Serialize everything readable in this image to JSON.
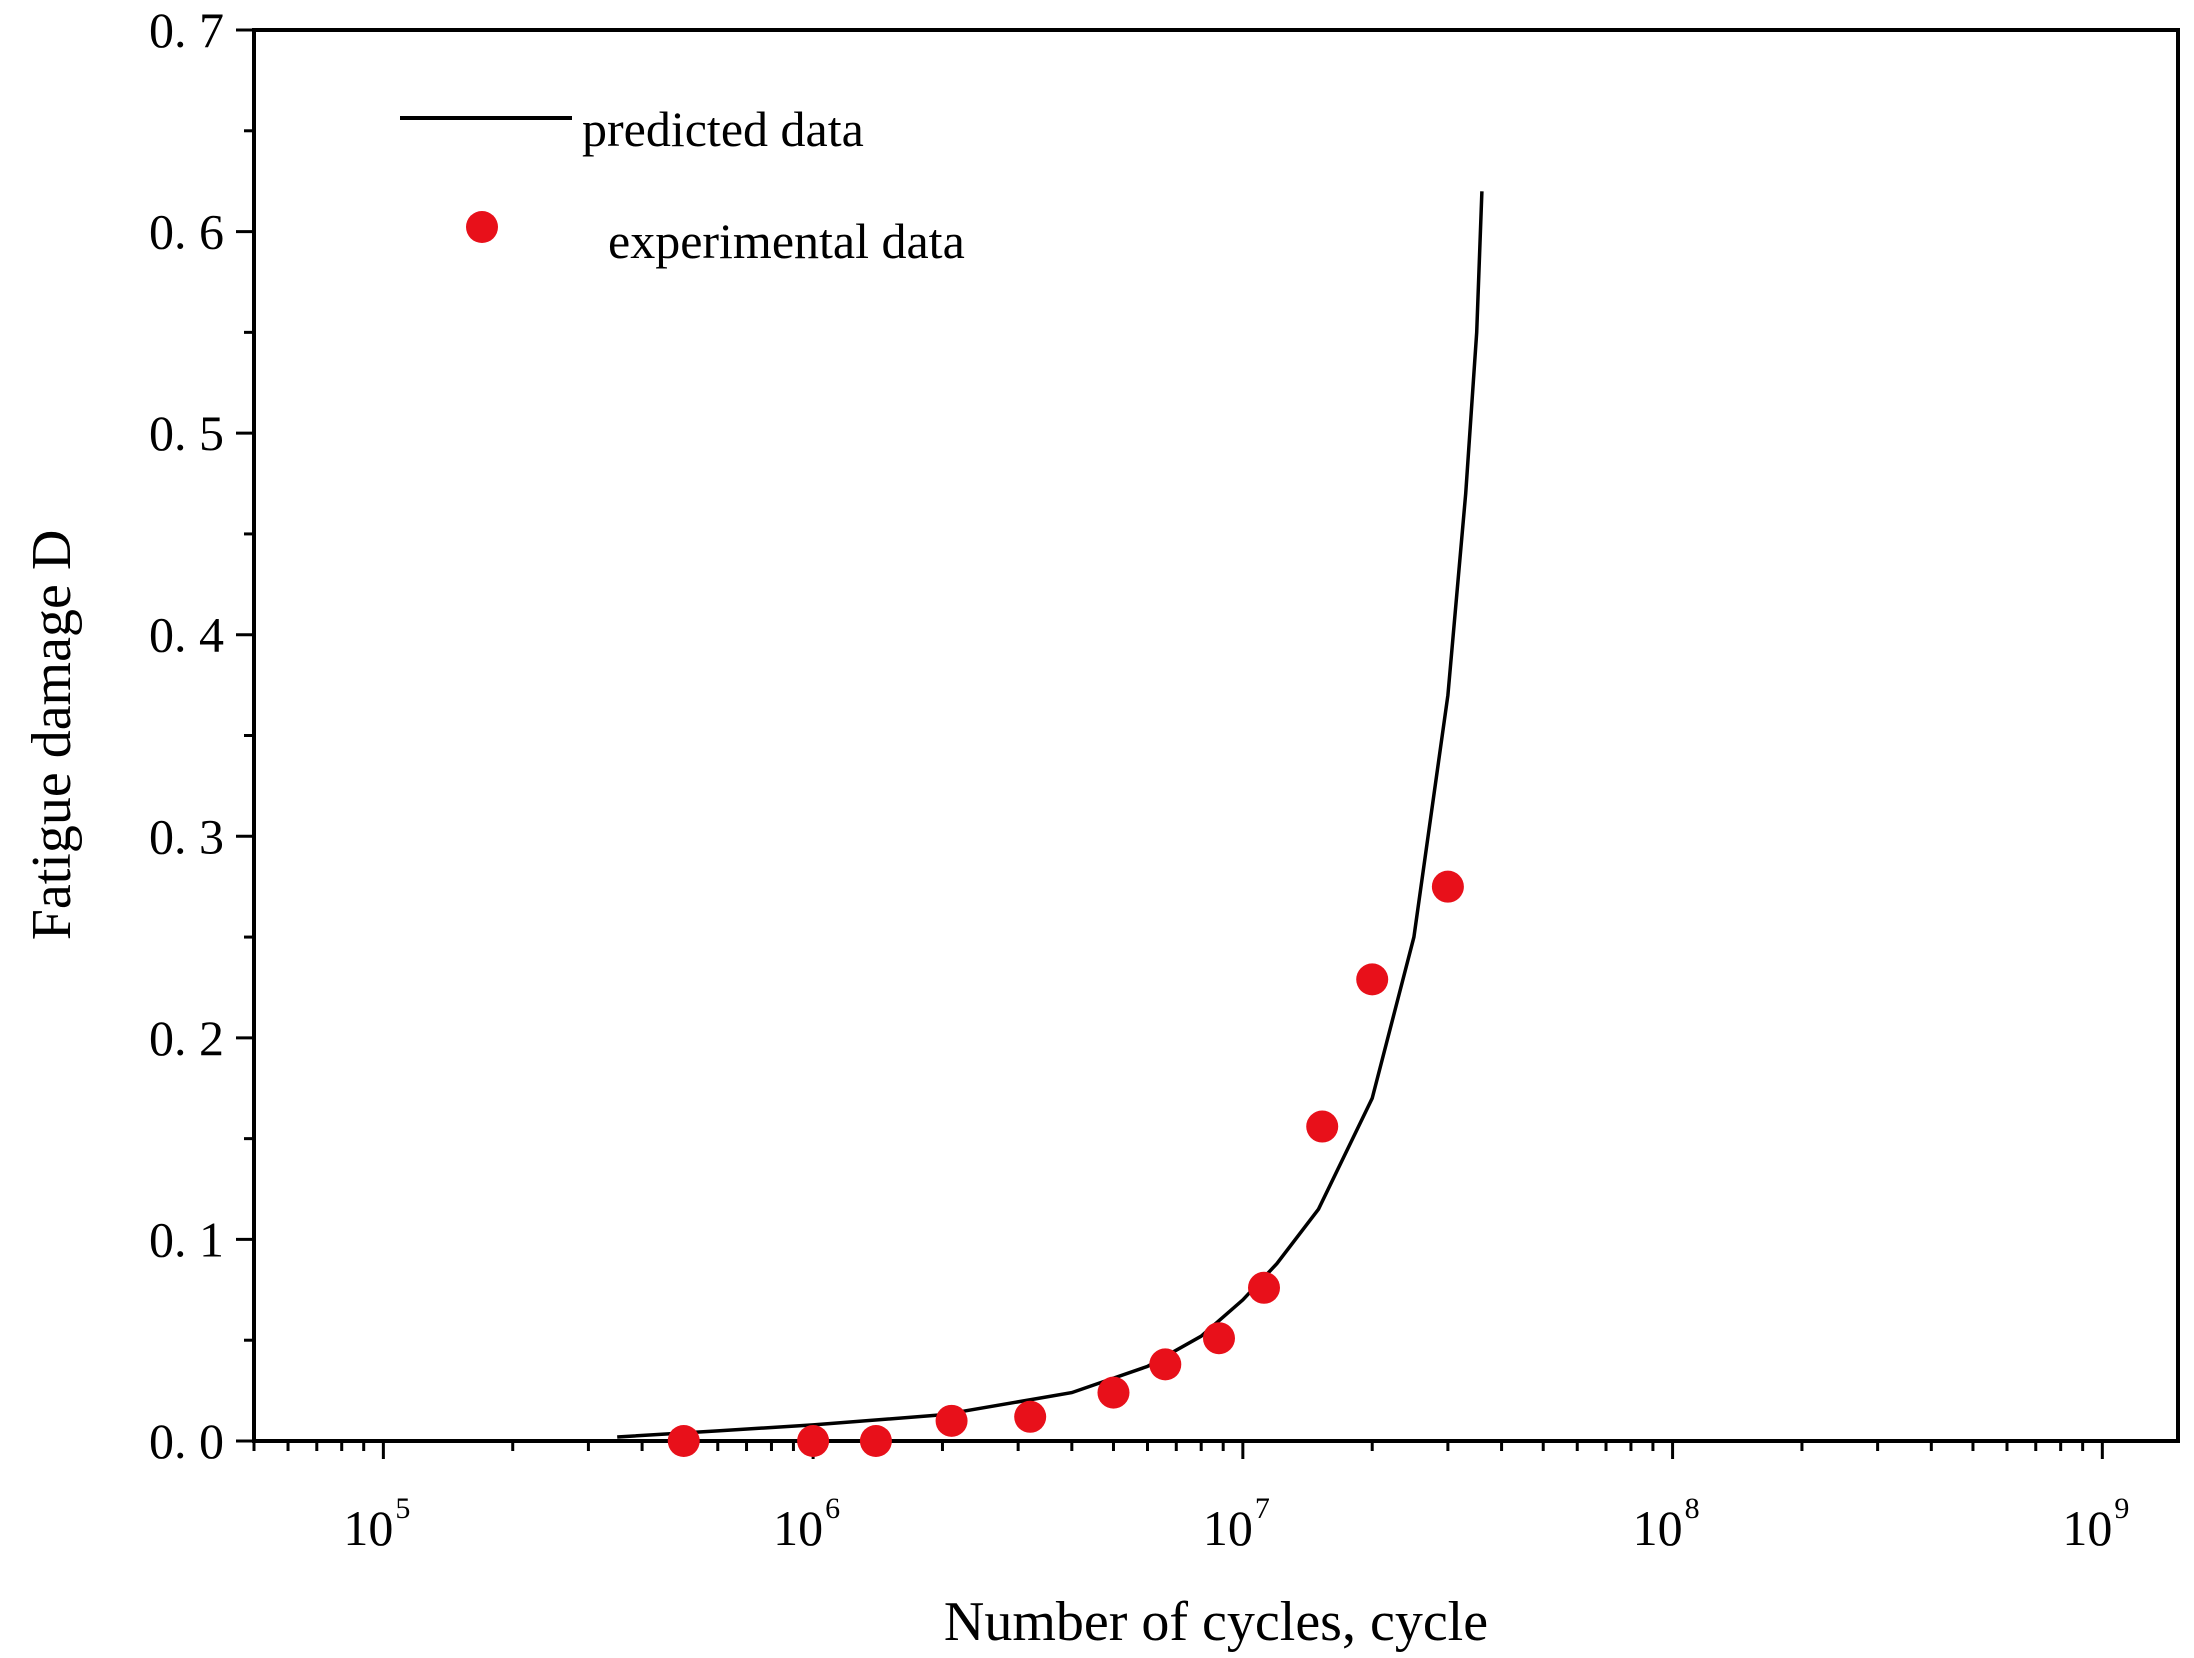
{
  "chart_data": {
    "type": "scatter",
    "title": "",
    "xlabel": "Number of cycles, cycle",
    "ylabel": "Fatigue damage D",
    "x_scale": "log10",
    "xlim": [
      50000,
      1500000000
    ],
    "ylim": [
      0,
      0.7
    ],
    "x_ticks": [
      {
        "value": 100000,
        "base": "10",
        "exp": "5"
      },
      {
        "value": 1000000,
        "base": "10",
        "exp": "6"
      },
      {
        "value": 10000000,
        "base": "10",
        "exp": "7"
      },
      {
        "value": 100000000,
        "base": "10",
        "exp": "8"
      },
      {
        "value": 1000000000,
        "base": "10",
        "exp": "9"
      }
    ],
    "y_ticks": [
      {
        "value": 0.0,
        "label": "0. 0"
      },
      {
        "value": 0.1,
        "label": "0. 1"
      },
      {
        "value": 0.2,
        "label": "0. 2"
      },
      {
        "value": 0.3,
        "label": "0. 3"
      },
      {
        "value": 0.4,
        "label": "0. 4"
      },
      {
        "value": 0.5,
        "label": "0. 5"
      },
      {
        "value": 0.6,
        "label": "0. 6"
      },
      {
        "value": 0.7,
        "label": "0. 7"
      }
    ],
    "legend_position": "top-left",
    "series": [
      {
        "name": "predicted data",
        "kind": "line",
        "color": "#000000",
        "x": [
          350000,
          600000,
          1000000,
          2000000,
          4000000,
          6000000,
          8000000,
          10000000,
          12000000,
          15000000,
          20000000,
          25000000,
          30000000,
          33000000,
          35000000,
          36000000
        ],
        "y": [
          0.002,
          0.005,
          0.008,
          0.013,
          0.024,
          0.037,
          0.052,
          0.07,
          0.088,
          0.115,
          0.17,
          0.25,
          0.37,
          0.47,
          0.55,
          0.62
        ]
      },
      {
        "name": "experimental data",
        "kind": "scatter",
        "color": "#e8101a",
        "x": [
          500000,
          1000000,
          1400000,
          2100000,
          3200000,
          5000000,
          6600000,
          8800000,
          11200000,
          15300000,
          20000000,
          30000000
        ],
        "y": [
          0.0,
          0.0,
          0.0,
          0.01,
          0.012,
          0.024,
          0.038,
          0.051,
          0.076,
          0.156,
          0.229,
          0.275
        ]
      }
    ]
  }
}
